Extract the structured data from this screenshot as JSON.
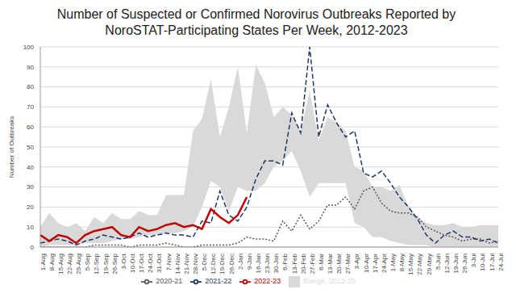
{
  "chart_data": {
    "type": "line",
    "title": "Number of Suspected or Confirmed Norovirus Outbreaks Reported by NoroSTAT-Participating States Per Week, 2012-2023",
    "y_label": "Number of Outbreaks",
    "categories": [
      "1-Aug",
      "8-Aug",
      "15-Aug",
      "22-Aug",
      "29-Aug",
      "5-Sep",
      "12-Sep",
      "19-Sep",
      "26-Sep",
      "3-Oct",
      "10-Oct",
      "17-Oct",
      "24-Oct",
      "31-Oct",
      "7-Nov",
      "14-Nov",
      "21-Nov",
      "28-Nov",
      "5-Dec",
      "12-Dec",
      "19-Dec",
      "26-Dec",
      "2-Jan",
      "9-Jan",
      "16-Jan",
      "23-Jan",
      "30-Jan",
      "6-Feb",
      "13-Feb",
      "20-Feb",
      "27-Feb",
      "6-Mar",
      "13-Mar",
      "20-Mar",
      "27-Mar",
      "3-Apr",
      "10-Apr",
      "17-Apr",
      "24-Apr",
      "1-May",
      "8-May",
      "15-May",
      "22-May",
      "29-May",
      "5-Jun",
      "12-Jun",
      "19-Jun",
      "26-Jun",
      "3-Jul",
      "10-Jul",
      "17-Jul",
      "24-Jul"
    ],
    "ylim": [
      0,
      100
    ],
    "yticks": [
      0,
      10,
      20,
      30,
      40,
      50,
      60,
      70,
      80,
      90,
      100
    ],
    "grid": true,
    "legend": "bottom",
    "series": [
      {
        "name": "Range, 2012-20",
        "type": "range",
        "color": "#d9d9d9",
        "low": [
          0,
          1,
          1,
          1,
          1,
          2,
          2,
          2,
          3,
          4,
          4,
          5,
          6,
          6,
          7,
          7,
          8,
          10,
          20,
          33,
          30,
          18,
          30,
          28,
          28,
          32,
          40,
          43,
          48,
          38,
          25,
          32,
          32,
          32,
          32,
          12,
          10,
          5,
          5,
          3,
          2,
          1,
          1,
          1,
          0,
          0,
          0,
          0,
          0,
          0,
          0,
          0
        ],
        "high": [
          10,
          17,
          12,
          10,
          12,
          8,
          15,
          12,
          17,
          14,
          14,
          18,
          16,
          16,
          26,
          26,
          26,
          58,
          64,
          84,
          55,
          70,
          90,
          57,
          91,
          82,
          65,
          70,
          66,
          58,
          78,
          53,
          65,
          62,
          58,
          40,
          38,
          30,
          30,
          28,
          31,
          20,
          15,
          12,
          11,
          11,
          12,
          10,
          10,
          11,
          11,
          11
        ]
      },
      {
        "name": "2020-21",
        "type": "line",
        "color": "#595959",
        "line_style": "dotted",
        "values": [
          0,
          0,
          0,
          0,
          0,
          0,
          1,
          1,
          1,
          1,
          0,
          1,
          1,
          1,
          2,
          1,
          0,
          0,
          1,
          1,
          1,
          1,
          2,
          5,
          4,
          4,
          3,
          13,
          8,
          16,
          9,
          13,
          21,
          21,
          25,
          19,
          28,
          30,
          22,
          18,
          17,
          17,
          15,
          10,
          8,
          6,
          5,
          3,
          4,
          4,
          2,
          3
        ]
      },
      {
        "name": "2021-22",
        "type": "line",
        "color": "#1f3864",
        "line_style": "dashed",
        "values": [
          2,
          3,
          4,
          3,
          1,
          3,
          4,
          6,
          5,
          4,
          5,
          7,
          5,
          6,
          7,
          6,
          6,
          5,
          13,
          12,
          28,
          16,
          13,
          20,
          34,
          43,
          43,
          41,
          67,
          57,
          100,
          55,
          71,
          62,
          55,
          58,
          37,
          35,
          38,
          32,
          25,
          20,
          14,
          6,
          2,
          6,
          8,
          5,
          5,
          3,
          4,
          2
        ]
      },
      {
        "name": "2022-23",
        "type": "line",
        "color": "#c00000",
        "line_style": "solid",
        "values": [
          6,
          3,
          6,
          5,
          2,
          6,
          8,
          9,
          10,
          6,
          5,
          10,
          8,
          9,
          11,
          12,
          10,
          11,
          9,
          19,
          15,
          12,
          16,
          25,
          null,
          null,
          null,
          null,
          null,
          null,
          null,
          null,
          null,
          null,
          null,
          null,
          null,
          null,
          null,
          null,
          null,
          null,
          null,
          null,
          null,
          null,
          null,
          null,
          null,
          null,
          null,
          null
        ]
      }
    ]
  }
}
